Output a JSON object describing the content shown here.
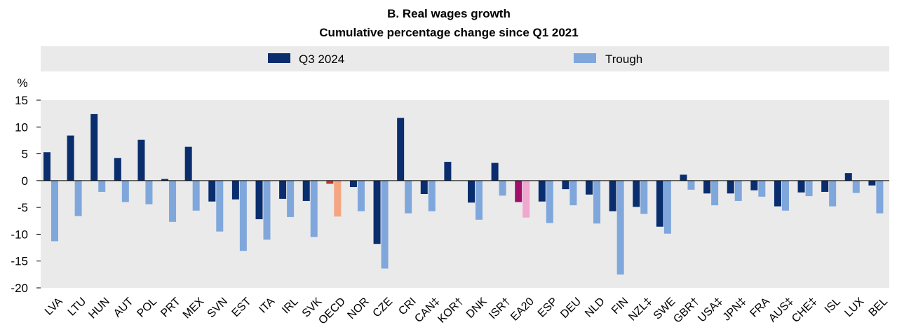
{
  "chart_data": {
    "type": "bar",
    "title": "B. Real wages growth",
    "subtitle": "Cumulative percentage change since Q1 2021",
    "ylabel": "%",
    "ylim": [
      -20,
      15
    ],
    "yticks": [
      15,
      10,
      5,
      0,
      -5,
      -10,
      -15,
      -20
    ],
    "grid": false,
    "legend_position": "top",
    "categories": [
      "LVA",
      "LTU",
      "HUN",
      "AUT",
      "POL",
      "PRT",
      "MEX",
      "SVN",
      "EST",
      "ITA",
      "IRL",
      "SVK",
      "OECD",
      "NOR",
      "CZE",
      "CRI",
      "CAN‡",
      "KOR†",
      "DNK",
      "ISR†",
      "EA20",
      "ESP",
      "DEU",
      "NLD",
      "FIN",
      "NZL‡",
      "SWE",
      "GBR†",
      "USA‡",
      "JPN‡",
      "FRA",
      "AUS‡",
      "CHE‡",
      "ISL",
      "LUX",
      "BEL"
    ],
    "highlight": {
      "OECD": {
        "q3": "#c0392b",
        "trough": "#f4a582"
      },
      "EA20": {
        "q3": "#a0106a",
        "trough": "#f0a8d0"
      }
    },
    "series": [
      {
        "name": "Q3 2024",
        "color": "#0a2d6e",
        "values": [
          5.3,
          8.4,
          12.4,
          4.2,
          7.6,
          0.3,
          6.3,
          -3.9,
          -3.5,
          -7.2,
          -3.4,
          -3.8,
          -0.6,
          -1.2,
          -11.8,
          11.7,
          -2.5,
          3.5,
          -4.1,
          3.3,
          -4.0,
          -3.9,
          -1.6,
          -2.6,
          -5.7,
          -4.9,
          -8.6,
          1.1,
          -2.4,
          -2.4,
          -1.8,
          -4.8,
          -2.2,
          -2.1,
          1.4,
          -0.9
        ]
      },
      {
        "name": "Trough",
        "color": "#7fa7dc",
        "values": [
          -11.3,
          -6.6,
          -2.1,
          -4.0,
          -4.4,
          -7.7,
          -5.6,
          -9.5,
          -13.1,
          -11.0,
          -6.8,
          -10.5,
          -6.7,
          -5.7,
          -16.4,
          -6.1,
          -5.7,
          0.0,
          -7.3,
          -2.8,
          -6.9,
          -7.9,
          -4.6,
          -8.0,
          -17.5,
          -6.2,
          -9.9,
          -1.7,
          -4.6,
          -3.8,
          -3.0,
          -5.6,
          -2.9,
          -4.8,
          -2.3,
          -6.1
        ]
      }
    ]
  }
}
